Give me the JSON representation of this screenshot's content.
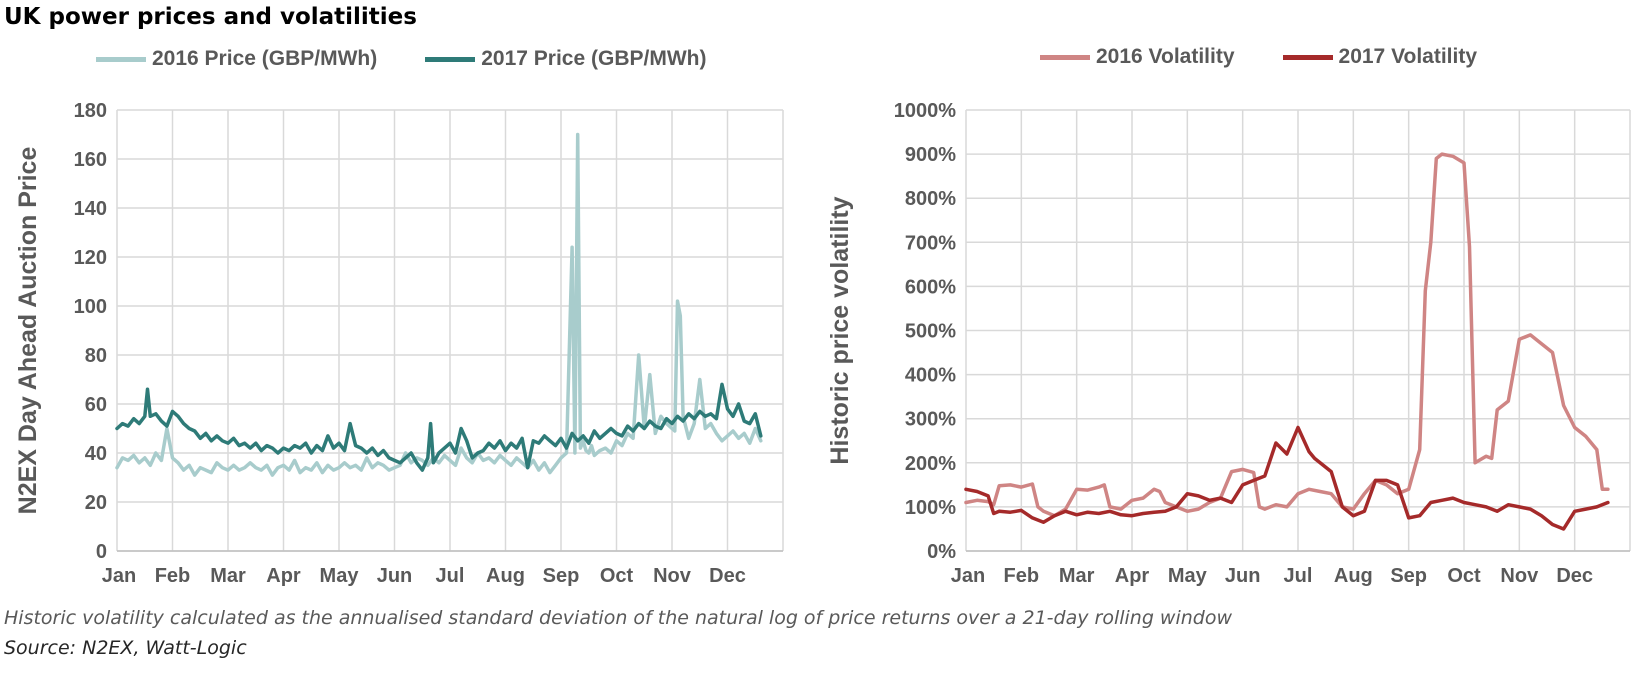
{
  "title": "UK power prices and volatilities",
  "footnote": "Historic volatility calculated as the annualised standard deviation of the natural log of price returns over a 21-day rolling window",
  "source": "Source: N2EX, Watt-Logic",
  "colors": {
    "price_2016": "#a8cccc",
    "price_2017": "#2e7b78",
    "vol_2016": "#cf8584",
    "vol_2017": "#a52a2a",
    "grid": "#d9d9d9",
    "axis_text": "#595959"
  },
  "chart_data": [
    {
      "type": "line",
      "ylabel": "N2EX Day Ahead Auction Price",
      "ylim": [
        0,
        180
      ],
      "yticks": [
        "0",
        "20",
        "40",
        "60",
        "80",
        "100",
        "120",
        "140",
        "160",
        "180"
      ],
      "categories": [
        "Jan",
        "Feb",
        "Mar",
        "Apr",
        "May",
        "Jun",
        "Jul",
        "Aug",
        "Sep",
        "Oct",
        "Nov",
        "Dec"
      ],
      "grid": true,
      "legend": "top",
      "series": [
        {
          "name": "2016 Price (GBP/MWh)",
          "x": [
            0,
            0.1,
            0.2,
            0.3,
            0.4,
            0.5,
            0.6,
            0.7,
            0.8,
            0.9,
            1.0,
            1.1,
            1.2,
            1.3,
            1.4,
            1.5,
            1.6,
            1.7,
            1.8,
            1.9,
            2.0,
            2.1,
            2.2,
            2.3,
            2.4,
            2.5,
            2.6,
            2.7,
            2.8,
            2.9,
            3.0,
            3.1,
            3.2,
            3.3,
            3.4,
            3.5,
            3.6,
            3.7,
            3.8,
            3.9,
            4.0,
            4.1,
            4.2,
            4.3,
            4.4,
            4.5,
            4.6,
            4.7,
            4.8,
            4.9,
            5.0,
            5.1,
            5.2,
            5.3,
            5.4,
            5.5,
            5.6,
            5.7,
            5.8,
            5.9,
            6.0,
            6.1,
            6.2,
            6.3,
            6.4,
            6.5,
            6.6,
            6.7,
            6.8,
            6.9,
            7.0,
            7.1,
            7.2,
            7.3,
            7.4,
            7.5,
            7.6,
            7.7,
            7.8,
            7.9,
            8.0,
            8.1,
            8.2,
            8.25,
            8.3,
            8.35,
            8.4,
            8.45,
            8.5,
            8.55,
            8.6,
            8.7,
            8.8,
            8.9,
            9.0,
            9.1,
            9.2,
            9.3,
            9.4,
            9.5,
            9.6,
            9.7,
            9.8,
            9.9,
            10.0,
            10.05,
            10.1,
            10.15,
            10.2,
            10.3,
            10.4,
            10.5,
            10.6,
            10.7,
            10.8,
            10.9,
            11.0,
            11.1,
            11.2,
            11.3,
            11.4,
            11.5,
            11.6
          ],
          "y": [
            34,
            38,
            37,
            39,
            36,
            38,
            35,
            40,
            37,
            50,
            38,
            36,
            33,
            35,
            31,
            34,
            33,
            32,
            36,
            34,
            33,
            35,
            33,
            34,
            36,
            34,
            33,
            35,
            31,
            34,
            35,
            33,
            37,
            32,
            34,
            33,
            36,
            32,
            35,
            33,
            34,
            36,
            34,
            35,
            33,
            38,
            34,
            36,
            35,
            33,
            34,
            35,
            40,
            36,
            38,
            37,
            35,
            38,
            36,
            39,
            37,
            35,
            42,
            38,
            36,
            40,
            37,
            38,
            36,
            39,
            37,
            35,
            38,
            36,
            34,
            37,
            33,
            36,
            32,
            35,
            38,
            40,
            124,
            40,
            170,
            42,
            45,
            41,
            40,
            43,
            39,
            41,
            42,
            40,
            45,
            43,
            48,
            46,
            80,
            50,
            72,
            48,
            55,
            52,
            50,
            49,
            102,
            96,
            55,
            46,
            52,
            70,
            50,
            52,
            48,
            45,
            47,
            49,
            46,
            48,
            44,
            50,
            45
          ]
        },
        {
          "name": "2017 Price (GBP/MWh)",
          "x": [
            0,
            0.1,
            0.2,
            0.3,
            0.4,
            0.5,
            0.55,
            0.6,
            0.7,
            0.8,
            0.9,
            1.0,
            1.1,
            1.2,
            1.3,
            1.4,
            1.5,
            1.6,
            1.7,
            1.8,
            1.9,
            2.0,
            2.1,
            2.2,
            2.3,
            2.4,
            2.5,
            2.6,
            2.7,
            2.8,
            2.9,
            3.0,
            3.1,
            3.2,
            3.3,
            3.4,
            3.5,
            3.6,
            3.7,
            3.8,
            3.9,
            4.0,
            4.1,
            4.2,
            4.3,
            4.4,
            4.5,
            4.6,
            4.7,
            4.8,
            4.9,
            5.0,
            5.1,
            5.2,
            5.3,
            5.4,
            5.5,
            5.6,
            5.65,
            5.7,
            5.8,
            5.9,
            6.0,
            6.1,
            6.2,
            6.3,
            6.4,
            6.5,
            6.6,
            6.7,
            6.8,
            6.9,
            7.0,
            7.1,
            7.2,
            7.3,
            7.4,
            7.5,
            7.6,
            7.7,
            7.8,
            7.9,
            8.0,
            8.1,
            8.2,
            8.3,
            8.4,
            8.5,
            8.6,
            8.7,
            8.8,
            8.9,
            9.0,
            9.1,
            9.2,
            9.3,
            9.4,
            9.5,
            9.6,
            9.7,
            9.8,
            9.9,
            10.0,
            10.1,
            10.2,
            10.3,
            10.4,
            10.5,
            10.6,
            10.7,
            10.8,
            10.9,
            11.0,
            11.1,
            11.2,
            11.3,
            11.4,
            11.5,
            11.6
          ],
          "y": [
            50,
            52,
            51,
            54,
            52,
            55,
            66,
            55,
            56,
            53,
            51,
            57,
            55,
            52,
            50,
            49,
            46,
            48,
            45,
            47,
            45,
            44,
            46,
            43,
            44,
            42,
            44,
            41,
            43,
            42,
            40,
            42,
            41,
            43,
            42,
            44,
            40,
            43,
            41,
            47,
            42,
            44,
            41,
            52,
            43,
            42,
            40,
            42,
            39,
            41,
            38,
            37,
            36,
            38,
            40,
            36,
            33,
            38,
            52,
            36,
            40,
            42,
            44,
            40,
            50,
            45,
            38,
            40,
            41,
            44,
            42,
            45,
            41,
            44,
            42,
            46,
            34,
            45,
            44,
            47,
            45,
            43,
            46,
            42,
            48,
            45,
            47,
            44,
            49,
            46,
            48,
            50,
            48,
            47,
            51,
            49,
            52,
            50,
            53,
            51,
            50,
            54,
            52,
            55,
            53,
            56,
            54,
            57,
            55,
            56,
            54,
            68,
            58,
            55,
            60,
            53,
            52,
            56,
            47
          ]
        }
      ]
    },
    {
      "type": "line",
      "ylabel": "Historic price volatility",
      "ylim": [
        0,
        1000
      ],
      "yticks": [
        "0%",
        "100%",
        "200%",
        "300%",
        "400%",
        "500%",
        "600%",
        "700%",
        "800%",
        "900%",
        "1000%"
      ],
      "categories": [
        "Jan",
        "Feb",
        "Mar",
        "Apr",
        "May",
        "Jun",
        "Jul",
        "Aug",
        "Sep",
        "Oct",
        "Nov",
        "Dec"
      ],
      "grid": true,
      "legend": "top",
      "series": [
        {
          "name": "2016 Volatility",
          "x": [
            0,
            0.2,
            0.4,
            0.5,
            0.6,
            0.8,
            1.0,
            1.2,
            1.3,
            1.4,
            1.6,
            1.8,
            2.0,
            2.2,
            2.4,
            2.5,
            2.6,
            2.8,
            3.0,
            3.2,
            3.4,
            3.5,
            3.6,
            3.8,
            4.0,
            4.2,
            4.4,
            4.6,
            4.8,
            5.0,
            5.2,
            5.3,
            5.4,
            5.6,
            5.8,
            6.0,
            6.2,
            6.4,
            6.6,
            6.8,
            7.0,
            7.2,
            7.4,
            7.6,
            7.8,
            8.0,
            8.2,
            8.3,
            8.4,
            8.5,
            8.6,
            8.8,
            9.0,
            9.1,
            9.2,
            9.4,
            9.5,
            9.6,
            9.8,
            10.0,
            10.2,
            10.4,
            10.6,
            10.8,
            11.0,
            11.2,
            11.4,
            11.5,
            11.6
          ],
          "y": [
            110,
            115,
            112,
            105,
            148,
            150,
            145,
            152,
            100,
            90,
            80,
            95,
            140,
            138,
            145,
            150,
            100,
            95,
            115,
            120,
            140,
            135,
            110,
            100,
            90,
            95,
            110,
            120,
            180,
            185,
            178,
            100,
            95,
            105,
            100,
            130,
            140,
            135,
            130,
            100,
            95,
            130,
            160,
            150,
            130,
            140,
            230,
            590,
            700,
            890,
            900,
            895,
            880,
            690,
            200,
            215,
            210,
            320,
            340,
            480,
            490,
            470,
            450,
            330,
            280,
            260,
            230,
            140,
            140
          ]
        },
        {
          "name": "2017 Volatility",
          "x": [
            0,
            0.2,
            0.4,
            0.5,
            0.6,
            0.8,
            1.0,
            1.2,
            1.4,
            1.6,
            1.8,
            2.0,
            2.2,
            2.4,
            2.6,
            2.8,
            3.0,
            3.2,
            3.4,
            3.6,
            3.8,
            4.0,
            4.2,
            4.4,
            4.6,
            4.8,
            5.0,
            5.2,
            5.4,
            5.6,
            5.8,
            6.0,
            6.2,
            6.3,
            6.4,
            6.6,
            6.8,
            7.0,
            7.2,
            7.4,
            7.6,
            7.8,
            8.0,
            8.2,
            8.4,
            8.6,
            8.8,
            9.0,
            9.2,
            9.4,
            9.6,
            9.8,
            10.0,
            10.2,
            10.4,
            10.6,
            10.8,
            11.0,
            11.2,
            11.4,
            11.6
          ],
          "y": [
            140,
            135,
            125,
            85,
            90,
            88,
            92,
            75,
            65,
            80,
            90,
            82,
            88,
            85,
            90,
            82,
            80,
            85,
            88,
            90,
            100,
            130,
            125,
            115,
            120,
            110,
            150,
            160,
            170,
            245,
            220,
            280,
            225,
            210,
            200,
            180,
            100,
            80,
            90,
            160,
            160,
            150,
            75,
            80,
            110,
            115,
            120,
            110,
            105,
            100,
            90,
            105,
            100,
            95,
            80,
            60,
            50,
            90,
            95,
            100,
            110
          ]
        }
      ]
    }
  ]
}
